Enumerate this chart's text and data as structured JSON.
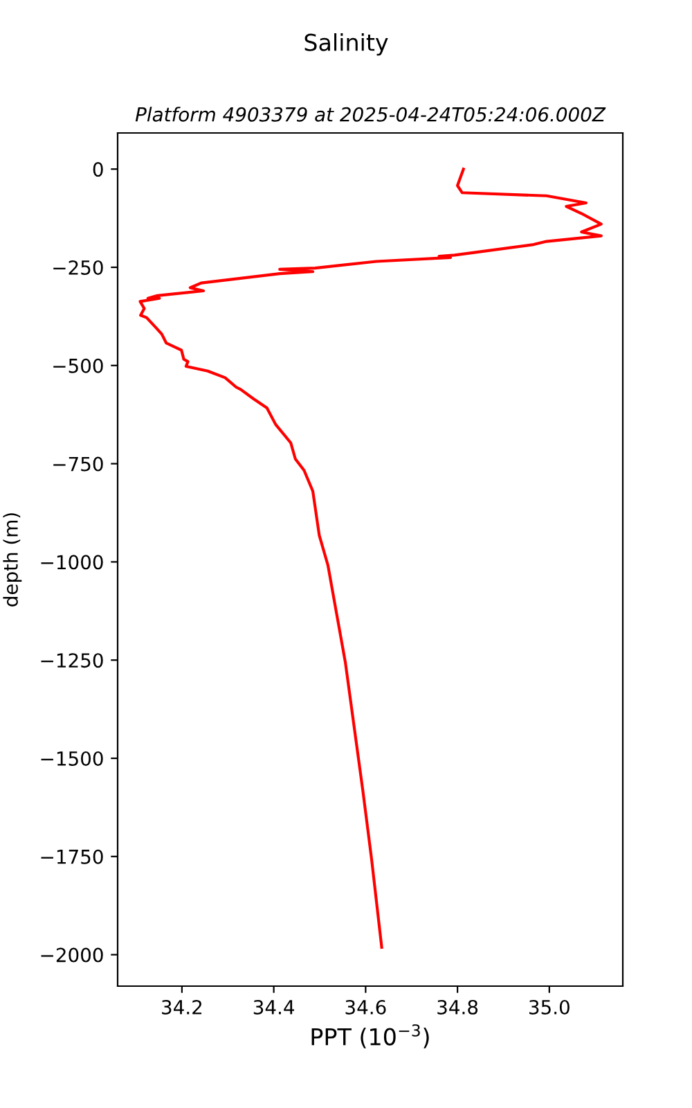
{
  "chart_data": {
    "type": "line",
    "title": "Salinity",
    "subtitle": "Platform 4903379 at 2025-04-24T05:24:06.000Z",
    "xlabel": "PPT (10$^{−3}$)",
    "ylabel": "depth (m)",
    "series": [
      {
        "color": "#ff0000",
        "x": [
          34.813,
          34.8,
          34.81,
          34.994,
          35.08,
          35.037,
          35.07,
          35.113,
          35.07,
          35.113,
          34.994,
          34.966,
          34.794,
          34.76,
          34.785,
          34.623,
          34.49,
          34.413,
          34.485,
          34.413,
          34.242,
          34.218,
          34.247,
          34.147,
          34.126,
          34.151,
          34.109,
          34.118,
          34.11,
          34.123,
          34.142,
          34.156,
          34.166,
          34.199,
          34.204,
          34.213,
          34.209,
          34.256,
          34.294,
          34.318,
          34.328,
          34.356,
          34.385,
          34.404,
          34.437,
          34.447,
          34.466,
          34.485,
          34.499,
          34.518,
          34.537,
          34.556,
          34.594,
          34.613,
          34.635
        ],
        "values": [
          0,
          -42,
          -60,
          -68,
          -86,
          -95,
          -113,
          -140,
          -160,
          -170,
          -184,
          -192,
          -219,
          -222,
          -225,
          -235,
          -252,
          -255,
          -261,
          -266,
          -290,
          -302,
          -310,
          -322,
          -329,
          -329,
          -337,
          -355,
          -372,
          -378,
          -402,
          -420,
          -443,
          -461,
          -484,
          -490,
          -502,
          -514,
          -531,
          -555,
          -561,
          -585,
          -608,
          -650,
          -697,
          -738,
          -767,
          -820,
          -932,
          -1009,
          -1133,
          -1257,
          -1583,
          -1757,
          -1981
        ]
      }
    ],
    "xlim": [
      34.06,
      35.16
    ],
    "ylim": [
      -2080,
      92
    ],
    "xticks": [
      34.2,
      34.4,
      34.6,
      34.8,
      {
        "value": 35.0,
        "label": "35.0"
      }
    ],
    "yticks": [
      0,
      -250,
      -500,
      -750,
      -1000,
      -1250,
      -1500,
      -1750,
      -2000
    ],
    "grid": false,
    "legend": false
  }
}
